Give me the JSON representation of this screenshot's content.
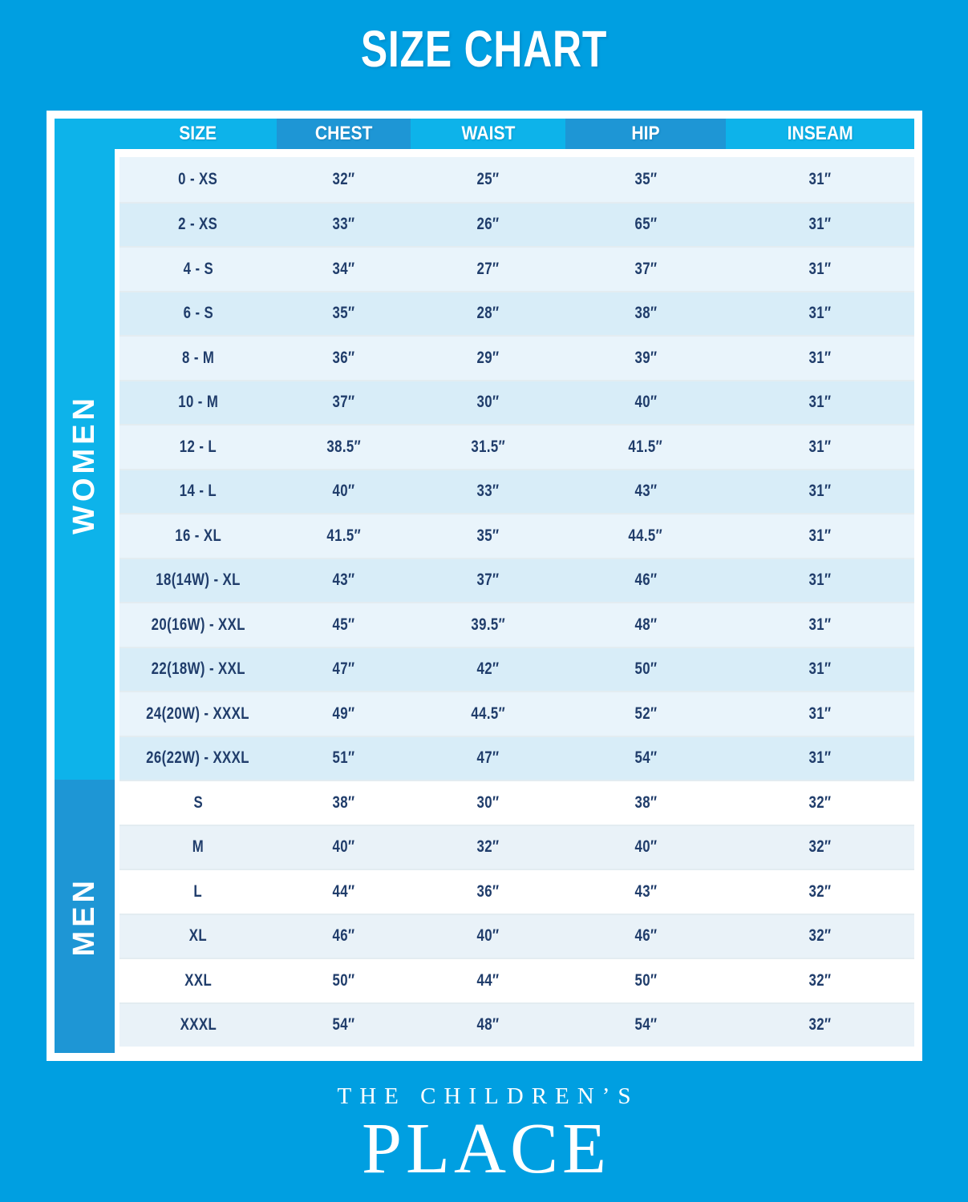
{
  "title": "SIZE CHART",
  "chart_data": {
    "type": "table",
    "title": "SIZE CHART",
    "columns": [
      "SIZE",
      "CHEST",
      "WAIST",
      "HIP",
      "INSEAM"
    ],
    "sections": [
      {
        "label": "WOMEN",
        "rows": [
          [
            "0 - XS",
            "32″",
            "25″",
            "35″",
            "31″"
          ],
          [
            "2 - XS",
            "33″",
            "26″",
            "65″",
            "31″"
          ],
          [
            "4 - S",
            "34″",
            "27″",
            "37″",
            "31″"
          ],
          [
            "6 - S",
            "35″",
            "28″",
            "38″",
            "31″"
          ],
          [
            "8 - M",
            "36″",
            "29″",
            "39″",
            "31″"
          ],
          [
            "10 - M",
            "37″",
            "30″",
            "40″",
            "31″"
          ],
          [
            "12 - L",
            "38.5″",
            "31.5″",
            "41.5″",
            "31″"
          ],
          [
            "14 - L",
            "40″",
            "33″",
            "43″",
            "31″"
          ],
          [
            "16 - XL",
            "41.5″",
            "35″",
            "44.5″",
            "31″"
          ],
          [
            "18(14W) - XL",
            "43″",
            "37″",
            "46″",
            "31″"
          ],
          [
            "20(16W) - XXL",
            "45″",
            "39.5″",
            "48″",
            "31″"
          ],
          [
            "22(18W) - XXL",
            "47″",
            "42″",
            "50″",
            "31″"
          ],
          [
            "24(20W) - XXXL",
            "49″",
            "44.5″",
            "52″",
            "31″"
          ],
          [
            "26(22W) - XXXL",
            "51″",
            "47″",
            "54″",
            "31″"
          ]
        ]
      },
      {
        "label": "MEN",
        "rows": [
          [
            "S",
            "38″",
            "30″",
            "38″",
            "32″"
          ],
          [
            "M",
            "40″",
            "32″",
            "40″",
            "32″"
          ],
          [
            "L",
            "44″",
            "36″",
            "43″",
            "32″"
          ],
          [
            "XL",
            "46″",
            "40″",
            "46″",
            "32″"
          ],
          [
            "XXL",
            "50″",
            "44″",
            "50″",
            "32″"
          ],
          [
            "XXXL",
            "54″",
            "48″",
            "54″",
            "32″"
          ]
        ]
      }
    ]
  },
  "footer": {
    "line1": "THE CHILDREN’S",
    "line2": "PLACE"
  },
  "colors": {
    "background": "#009fe1",
    "cyan_accent": "#0db3ea",
    "dark_accent": "#1e96d5",
    "row_light_blue": "#e9f4fb",
    "row_medium_blue": "#d8edf8",
    "row_white": "#ffffff",
    "row_gray_blue": "#e9f2f8",
    "text_navy": "#203d6b",
    "text_white": "#ffffff"
  }
}
